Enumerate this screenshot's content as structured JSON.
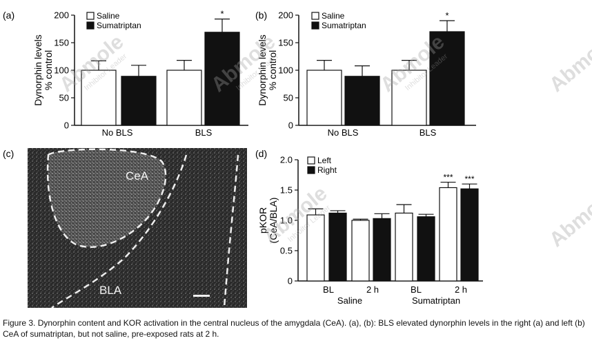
{
  "chart_data": [
    {
      "panel": "(a)",
      "type": "bar",
      "categories": [
        "No BLS",
        "BLS"
      ],
      "series": [
        {
          "name": "Saline",
          "values": [
            100,
            100
          ],
          "errors": [
            17,
            18
          ]
        },
        {
          "name": "Sumatriptan",
          "values": [
            89,
            169
          ],
          "errors": [
            20,
            24
          ]
        }
      ],
      "ylabel": "Dynorphin levels\n% control",
      "ylim": [
        0,
        200
      ],
      "yticks": [
        "0",
        "50",
        "100",
        "150",
        "200"
      ],
      "annotations": [
        "*"
      ],
      "legend": "top-left"
    },
    {
      "panel": "(b)",
      "type": "bar",
      "categories": [
        "No BLS",
        "BLS"
      ],
      "series": [
        {
          "name": "Saline",
          "values": [
            100,
            100
          ],
          "errors": [
            18,
            18
          ]
        },
        {
          "name": "Sumatriptan",
          "values": [
            89,
            170
          ],
          "errors": [
            19,
            20
          ]
        }
      ],
      "ylabel": "Dynorphin levels\n% control",
      "ylim": [
        0,
        200
      ],
      "yticks": [
        "0",
        "50",
        "100",
        "150",
        "200"
      ],
      "annotations": [
        "*"
      ],
      "legend": "top-left"
    },
    {
      "panel": "(d)",
      "type": "bar",
      "categories": [
        "BL",
        "2 h",
        "BL",
        "2 h"
      ],
      "groups": [
        "Saline",
        "Sumatriptan"
      ],
      "series": [
        {
          "name": "Left",
          "values": [
            1.09,
            1.0,
            1.12,
            1.54
          ],
          "errors": [
            0.1,
            0.02,
            0.14,
            0.09
          ]
        },
        {
          "name": "Right",
          "values": [
            1.12,
            1.03,
            1.06,
            1.52
          ],
          "errors": [
            0.04,
            0.08,
            0.04,
            0.08
          ]
        }
      ],
      "ylabel": "pKOR\n(CeA/BLA)",
      "ylim": [
        0,
        2.0
      ],
      "yticks": [
        "0",
        "0.5",
        "1.0",
        "1.5",
        "2.0"
      ],
      "annotations": [
        "***",
        "***"
      ],
      "legend": "top-left"
    }
  ],
  "panels": {
    "a_label": "(a)",
    "b_label": "(b)",
    "c_label": "(c)",
    "d_label": "(d)"
  },
  "micrograph": {
    "cea_label": "CeA",
    "bla_label": "BLA"
  },
  "caption": "Figure 3. Dynorphin content and KOR activation in the central nucleus of the amygdala (CeA). (a), (b): BLS elevated dynorphin levels in the right (a) and left (b) CeA of sumatriptan, but not saline, pre-exposed rats at 2 h.",
  "watermark": {
    "brand": "Abmole",
    "tagline": "Inhibitor Leader",
    "accent_color": "#4a90d9",
    "dot_color": "#f2b233"
  }
}
